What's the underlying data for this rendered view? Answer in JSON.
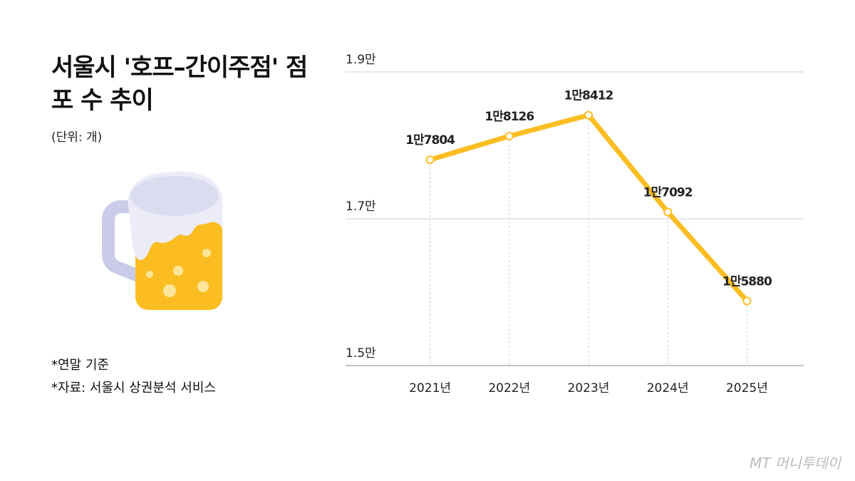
{
  "chart_data": {
    "type": "line",
    "title": "서울시 '호프–간이주점' 점포 수 추이",
    "unit": "(단위: 개)",
    "notes": [
      "*연말 기준",
      "*자료: 서울시 상권분석 서비스"
    ],
    "source": "MT 머니투데이",
    "categories": [
      "2021년",
      "2022년",
      "2023년",
      "2024년",
      "2025년"
    ],
    "values": [
      17804,
      18126,
      18412,
      17092,
      15880
    ],
    "value_labels": [
      "1만7804",
      "1만8126",
      "1만8412",
      "1만7092",
      "1만5880"
    ],
    "color": "#fbbd22",
    "ylim": [
      15000,
      19000
    ],
    "yticks": [
      {
        "value": 15000,
        "label": "1.5만"
      },
      {
        "value": 17000,
        "label": "1.7만"
      },
      {
        "value": 19000,
        "label": "1.9만"
      }
    ],
    "grid": true
  }
}
